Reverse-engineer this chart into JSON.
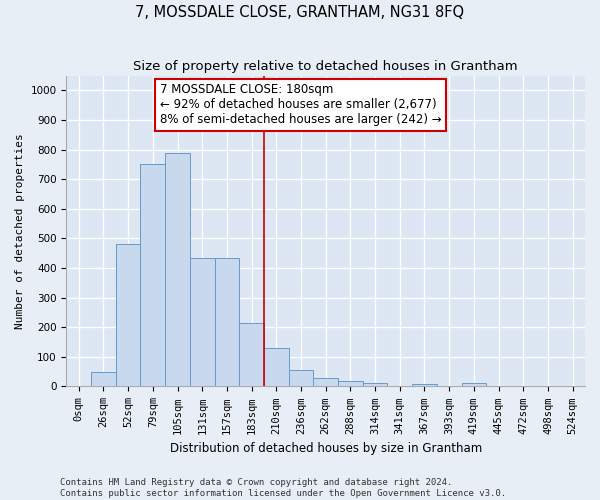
{
  "title": "7, MOSSDALE CLOSE, GRANTHAM, NG31 8FQ",
  "subtitle": "Size of property relative to detached houses in Grantham",
  "xlabel": "Distribution of detached houses by size in Grantham",
  "ylabel": "Number of detached properties",
  "bar_labels": [
    "0sqm",
    "26sqm",
    "52sqm",
    "79sqm",
    "105sqm",
    "131sqm",
    "157sqm",
    "183sqm",
    "210sqm",
    "236sqm",
    "262sqm",
    "288sqm",
    "314sqm",
    "341sqm",
    "367sqm",
    "393sqm",
    "419sqm",
    "445sqm",
    "472sqm",
    "498sqm",
    "524sqm"
  ],
  "bar_heights": [
    0,
    48,
    480,
    750,
    790,
    435,
    435,
    215,
    130,
    55,
    30,
    18,
    10,
    0,
    8,
    0,
    10,
    0,
    0,
    0,
    0
  ],
  "bar_color": "#c8d8ed",
  "bar_edge_color": "#6699cc",
  "bar_linewidth": 0.7,
  "vline_color": "#cc0000",
  "vline_x_index": 7.5,
  "annotation_box_text": "7 MOSSDALE CLOSE: 180sqm\n← 92% of detached houses are smaller (2,677)\n8% of semi-detached houses are larger (242) →",
  "annotation_box_color": "#cc0000",
  "annotation_text_fontsize": 8.5,
  "ylim": [
    0,
    1050
  ],
  "yticks": [
    0,
    100,
    200,
    300,
    400,
    500,
    600,
    700,
    800,
    900,
    1000
  ],
  "background_color": "#e8eef5",
  "plot_bg_color": "#dce7f3",
  "footer_line1": "Contains HM Land Registry data © Crown copyright and database right 2024.",
  "footer_line2": "Contains public sector information licensed under the Open Government Licence v3.0.",
  "title_fontsize": 10.5,
  "subtitle_fontsize": 9.5,
  "xlabel_fontsize": 8.5,
  "ylabel_fontsize": 8,
  "tick_fontsize": 7.5,
  "footer_fontsize": 6.5,
  "grid_color": "#ffffff",
  "grid_linewidth": 1.0
}
